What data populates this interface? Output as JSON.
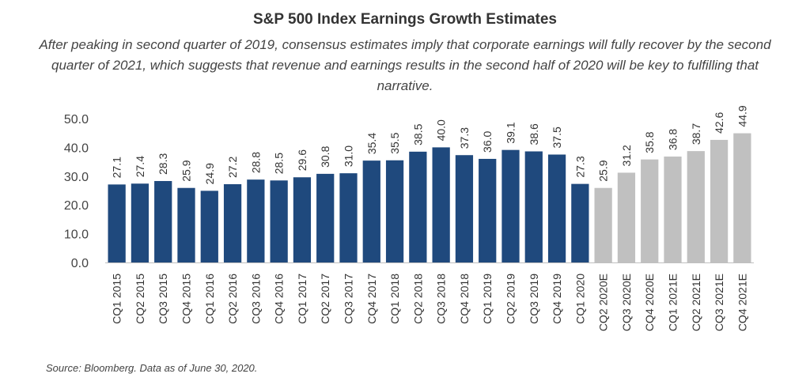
{
  "chart_data": {
    "type": "bar",
    "title": "S&P 500 Index Earnings Growth Estimates",
    "subtitle": "After peaking in second quarter of 2019, consensus estimates imply that corporate earnings will fully recover by the second quarter of 2021, which suggests that revenue and earnings results in the second half of 2020 will be key to fulfilling that narrative.",
    "source": "Source: Bloomberg. Data as of June 30, 2020.",
    "xlabel": "",
    "ylabel": "",
    "ylim": [
      0,
      50
    ],
    "yticks": [
      "0.0",
      "10.0",
      "20.0",
      "30.0",
      "40.0",
      "50.0"
    ],
    "grid": false,
    "legend": "none",
    "categories": [
      "CQ1 2015",
      "CQ2 2015",
      "CQ3 2015",
      "CQ4 2015",
      "CQ1 2016",
      "CQ2 2016",
      "CQ3 2016",
      "CQ4 2016",
      "CQ1 2017",
      "CQ2 2017",
      "CQ3 2017",
      "CQ4 2017",
      "CQ1 2018",
      "CQ2 2018",
      "CQ3 2018",
      "CQ4 2018",
      "CQ1 2019",
      "CQ2 2019",
      "CQ3 2019",
      "CQ4 2019",
      "CQ1 2020",
      "CQ2 2020E",
      "CQ3 2020E",
      "CQ4 2020E",
      "CQ1 2021E",
      "CQ2 2021E",
      "CQ3 2021E",
      "CQ4 2021E"
    ],
    "values": [
      27.1,
      27.4,
      28.3,
      25.9,
      24.9,
      27.2,
      28.8,
      28.5,
      29.6,
      30.8,
      31.0,
      35.4,
      35.5,
      38.5,
      40.0,
      37.3,
      36.0,
      39.1,
      38.6,
      37.5,
      27.3,
      25.9,
      31.2,
      35.8,
      36.8,
      38.7,
      42.6,
      44.9
    ],
    "value_labels": [
      "27.1",
      "27.4",
      "28.3",
      "25.9",
      "24.9",
      "27.2",
      "28.8",
      "28.5",
      "29.6",
      "30.8",
      "31.0",
      "35.4",
      "35.5",
      "38.5",
      "40.0",
      "37.3",
      "36.0",
      "39.1",
      "38.6",
      "37.5",
      "27.3",
      "25.9",
      "31.2",
      "35.8",
      "36.8",
      "38.7",
      "42.6",
      "44.9"
    ],
    "estimate": [
      false,
      false,
      false,
      false,
      false,
      false,
      false,
      false,
      false,
      false,
      false,
      false,
      false,
      false,
      false,
      false,
      false,
      false,
      false,
      false,
      false,
      true,
      true,
      true,
      true,
      true,
      true,
      true
    ],
    "colors": {
      "actual": "#1f497d",
      "estimate": "#c0c0c0",
      "axis": "#bfbfbf"
    }
  }
}
